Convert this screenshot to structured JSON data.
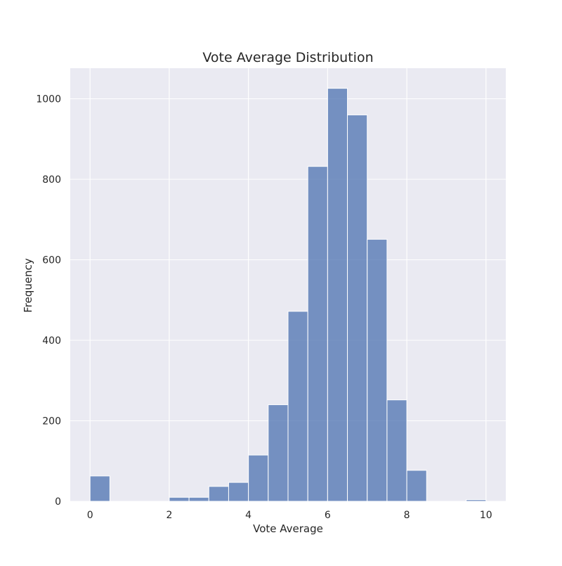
{
  "chart_data": {
    "type": "bar",
    "title": "Vote Average Distribution",
    "xlabel": "Vote Average",
    "ylabel": "Frequency",
    "xlim": [
      -0.5,
      10.5
    ],
    "ylim": [
      0,
      1076
    ],
    "x_ticks": [
      0,
      2,
      4,
      6,
      8,
      10
    ],
    "y_ticks": [
      0,
      200,
      400,
      600,
      800,
      1000
    ],
    "grid": true,
    "bar_color": "#4c72b0",
    "background_color": "#eaeaf2",
    "bins": [
      {
        "start": 0.0,
        "end": 0.5,
        "count": 63
      },
      {
        "start": 0.5,
        "end": 1.0,
        "count": 0
      },
      {
        "start": 1.0,
        "end": 1.5,
        "count": 0
      },
      {
        "start": 1.5,
        "end": 2.0,
        "count": 0
      },
      {
        "start": 2.0,
        "end": 2.5,
        "count": 10
      },
      {
        "start": 2.5,
        "end": 3.0,
        "count": 10
      },
      {
        "start": 3.0,
        "end": 3.5,
        "count": 37
      },
      {
        "start": 3.5,
        "end": 4.0,
        "count": 47
      },
      {
        "start": 4.0,
        "end": 4.5,
        "count": 115
      },
      {
        "start": 4.5,
        "end": 5.0,
        "count": 240
      },
      {
        "start": 5.0,
        "end": 5.5,
        "count": 472
      },
      {
        "start": 5.5,
        "end": 6.0,
        "count": 832
      },
      {
        "start": 6.0,
        "end": 6.5,
        "count": 1026
      },
      {
        "start": 6.5,
        "end": 7.0,
        "count": 960
      },
      {
        "start": 7.0,
        "end": 7.5,
        "count": 651
      },
      {
        "start": 7.5,
        "end": 8.0,
        "count": 252
      },
      {
        "start": 8.0,
        "end": 8.5,
        "count": 77
      },
      {
        "start": 8.5,
        "end": 9.0,
        "count": 0
      },
      {
        "start": 9.0,
        "end": 9.5,
        "count": 0
      },
      {
        "start": 9.5,
        "end": 10.0,
        "count": 4
      }
    ]
  }
}
